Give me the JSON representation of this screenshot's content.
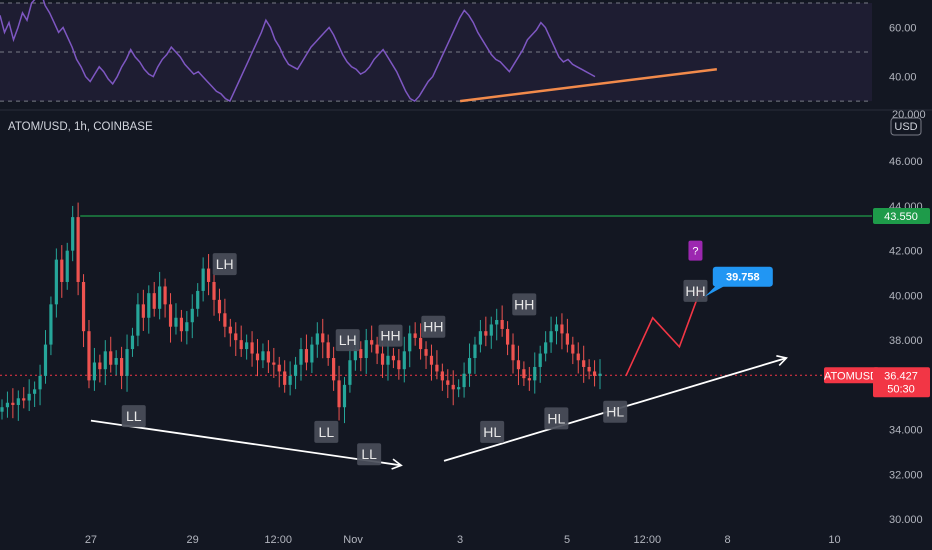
{
  "chart_data": [
    {
      "type": "line",
      "name": "rsi-pane",
      "ylim": [
        28,
        70
      ],
      "y_ticks": [
        {
          "value": 60,
          "label": "60.00"
        },
        {
          "value": 40,
          "label": "40.00"
        }
      ],
      "clipped_tick_label": "20.000",
      "bands": [
        70,
        50,
        30
      ],
      "series": [
        {
          "values": [
            65,
            58,
            62,
            55,
            60,
            66,
            63,
            70,
            72,
            75,
            69,
            66,
            62,
            58,
            60,
            56,
            52,
            47,
            44,
            40,
            38,
            41,
            44,
            42,
            39,
            37,
            40,
            44,
            47,
            51,
            48,
            46,
            43,
            41,
            40,
            44,
            47,
            49,
            52,
            50,
            48,
            45,
            43,
            41,
            42,
            40,
            38,
            36,
            34,
            33,
            31,
            30,
            34,
            38,
            42,
            46,
            50,
            54,
            58,
            63,
            60,
            55,
            52,
            48,
            45,
            44,
            43,
            46,
            49,
            52,
            54,
            56,
            58,
            60,
            57,
            53,
            49,
            46,
            44,
            43,
            41,
            42,
            44,
            47,
            49,
            51,
            48,
            45,
            42,
            38,
            34,
            31,
            30,
            32,
            35,
            38,
            40,
            44,
            48,
            52,
            56,
            60,
            64,
            67,
            65,
            62,
            58,
            55,
            52,
            49,
            47,
            46,
            44,
            42,
            45,
            48,
            51,
            55,
            57,
            59,
            62,
            60,
            56,
            52,
            48,
            46,
            47,
            45,
            44,
            43,
            42,
            41,
            40
          ]
        }
      ],
      "trendline": {
        "from": {
          "t": 86,
          "v": 30
        },
        "to": {
          "t": 134,
          "v": 43
        },
        "color": "#f28a4b"
      }
    },
    {
      "type": "candlestick",
      "name": "price-pane",
      "title": "ATOM/USD, 1h, COINBASE",
      "currency": "USD",
      "ylim": [
        29.6,
        48.2
      ],
      "y_ticks": [
        {
          "value": 46,
          "label": "46.000"
        },
        {
          "value": 44,
          "label": "44.000"
        },
        {
          "value": 42,
          "label": "42.000"
        },
        {
          "value": 40,
          "label": "40.000"
        },
        {
          "value": 38,
          "label": "38.000"
        },
        {
          "value": 36,
          "label": "36.000"
        },
        {
          "value": 34,
          "label": "34.000"
        },
        {
          "value": 32,
          "label": "32.000"
        },
        {
          "value": 30,
          "label": "30.000"
        }
      ],
      "x_ticks": [
        {
          "t": 17,
          "label": "27"
        },
        {
          "t": 36,
          "label": "29"
        },
        {
          "t": 52,
          "label": "12:00"
        },
        {
          "t": 66,
          "label": "Nov"
        },
        {
          "t": 86,
          "label": "3"
        },
        {
          "t": 106,
          "label": "5"
        },
        {
          "t": 121,
          "label": "12:00"
        },
        {
          "t": 136,
          "label": "8"
        },
        {
          "t": 156,
          "label": "10"
        }
      ],
      "closes": [
        35.0,
        35.2,
        35.1,
        35.4,
        35.3,
        35.6,
        35.8,
        36.4,
        37.8,
        39.6,
        41.6,
        40.6,
        42.0,
        43.5,
        40.6,
        38.4,
        36.2,
        37.0,
        36.7,
        37.5,
        36.9,
        37.2,
        36.4,
        37.6,
        38.2,
        39.6,
        39.0,
        40.1,
        39.4,
        40.4,
        39.6,
        38.6,
        39.0,
        38.4,
        38.8,
        39.4,
        40.2,
        41.2,
        40.6,
        39.8,
        39.2,
        38.6,
        38.3,
        38.0,
        37.6,
        37.9,
        37.4,
        37.1,
        37.5,
        37.0,
        36.9,
        36.6,
        36.0,
        36.4,
        36.9,
        37.6,
        37.0,
        37.8,
        38.3,
        37.9,
        37.2,
        36.2,
        35.0,
        36.0,
        37.1,
        37.6,
        37.2,
        38.0,
        37.8,
        37.4,
        36.9,
        37.3,
        37.1,
        36.7,
        37.5,
        38.3,
        38.1,
        37.6,
        37.3,
        36.9,
        36.6,
        36.2,
        36.0,
        35.8,
        35.9,
        36.5,
        37.2,
        37.8,
        38.4,
        38.2,
        38.7,
        38.9,
        38.5,
        37.8,
        37.1,
        36.7,
        36.3,
        36.2,
        36.8,
        37.4,
        37.9,
        38.4,
        38.7,
        38.3,
        37.8,
        37.4,
        37.1,
        36.8,
        36.6,
        36.4,
        36.5
      ],
      "current_price": {
        "value": 36.427,
        "label": "36.427",
        "tag": "ATOMUSD",
        "countdown": "50:30",
        "color": "#f23645"
      },
      "resistance": {
        "value": 43.55,
        "label": "43.550",
        "from_t": 15,
        "color": "#1e9b4a"
      },
      "target_tag": {
        "t": 131,
        "v": 40.3,
        "label": "39.758",
        "color": "#2196f3"
      },
      "question_mark": {
        "t": 130,
        "v": 42.0,
        "label": "?"
      },
      "pattern_labels": [
        {
          "t": 25,
          "v": 34.6,
          "label": "LL"
        },
        {
          "t": 42,
          "v": 41.4,
          "label": "LH"
        },
        {
          "t": 61,
          "v": 33.9,
          "label": "LL"
        },
        {
          "t": 65,
          "v": 38.0,
          "label": "LH"
        },
        {
          "t": 69,
          "v": 32.9,
          "label": "LL"
        },
        {
          "t": 73,
          "v": 38.2,
          "label": "HH"
        },
        {
          "t": 81,
          "v": 38.6,
          "label": "HH"
        },
        {
          "t": 92,
          "v": 33.9,
          "label": "HL"
        },
        {
          "t": 98,
          "v": 39.6,
          "label": "HH"
        },
        {
          "t": 104,
          "v": 34.5,
          "label": "HL"
        },
        {
          "t": 115,
          "v": 34.8,
          "label": "HL"
        },
        {
          "t": 130,
          "v": 40.2,
          "label": "HH"
        }
      ],
      "projection": [
        {
          "t": 117,
          "v": 36.4
        },
        {
          "t": 122,
          "v": 39.0
        },
        {
          "t": 127,
          "v": 37.7
        },
        {
          "t": 131,
          "v": 40.3
        }
      ],
      "trend_arrows": [
        {
          "from": {
            "t": 17,
            "v": 34.4
          },
          "to": {
            "t": 75,
            "v": 32.4
          },
          "color": "#ffffff"
        },
        {
          "from": {
            "t": 83,
            "v": 32.6
          },
          "to": {
            "t": 147,
            "v": 37.2
          },
          "color": "#ffffff"
        }
      ]
    }
  ]
}
